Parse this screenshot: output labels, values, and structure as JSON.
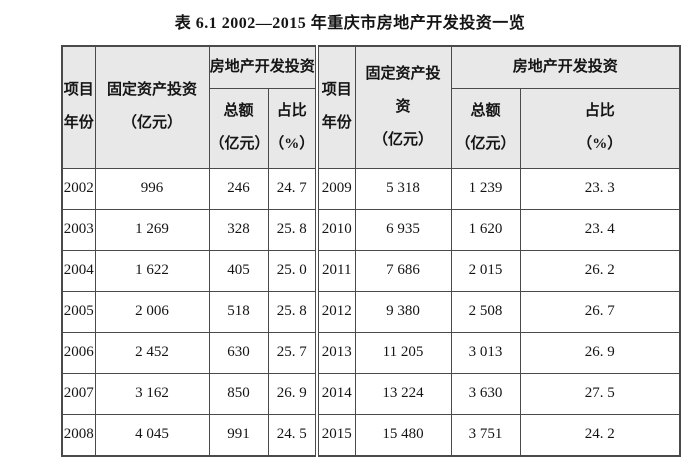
{
  "caption": "表 6.1 2002—2015 年重庆市房地产开发投资一览",
  "colors": {
    "header_bg": "#e8e8e8",
    "border": "#4a4a4a",
    "text": "#141414",
    "background": "#ffffff"
  },
  "table": {
    "header": {
      "year_col": "项目\n年份",
      "fixed_left": "固定资产投资\n（亿元）",
      "fixed_right": "固定资产投\n资\n（亿元）",
      "re_dev_group": "房地产开发投资",
      "total_sub": "总额\n（亿元）",
      "share_sub": "占比\n（%）"
    },
    "rows_left": [
      {
        "year": "2002",
        "fixed": "996",
        "total": "246",
        "share": "24. 7"
      },
      {
        "year": "2003",
        "fixed": "1 269",
        "total": "328",
        "share": "25. 8"
      },
      {
        "year": "2004",
        "fixed": "1 622",
        "total": "405",
        "share": "25. 0"
      },
      {
        "year": "2005",
        "fixed": "2 006",
        "total": "518",
        "share": "25. 8"
      },
      {
        "year": "2006",
        "fixed": "2 452",
        "total": "630",
        "share": "25. 7"
      },
      {
        "year": "2007",
        "fixed": "3 162",
        "total": "850",
        "share": "26. 9"
      },
      {
        "year": "2008",
        "fixed": "4 045",
        "total": "991",
        "share": "24. 5"
      }
    ],
    "rows_right": [
      {
        "year": "2009",
        "fixed": "5 318",
        "total": "1 239",
        "share": "23. 3"
      },
      {
        "year": "2010",
        "fixed": "6 935",
        "total": "1 620",
        "share": "23. 4"
      },
      {
        "year": "2011",
        "fixed": "7 686",
        "total": "2 015",
        "share": "26. 2"
      },
      {
        "year": "2012",
        "fixed": "9 380",
        "total": "2 508",
        "share": "26. 7"
      },
      {
        "year": "2013",
        "fixed": "11 205",
        "total": "3 013",
        "share": "26. 9"
      },
      {
        "year": "2014",
        "fixed": "13 224",
        "total": "3 630",
        "share": "27. 5"
      },
      {
        "year": "2015",
        "fixed": "15 480",
        "total": "3 751",
        "share": "24. 2"
      }
    ]
  }
}
